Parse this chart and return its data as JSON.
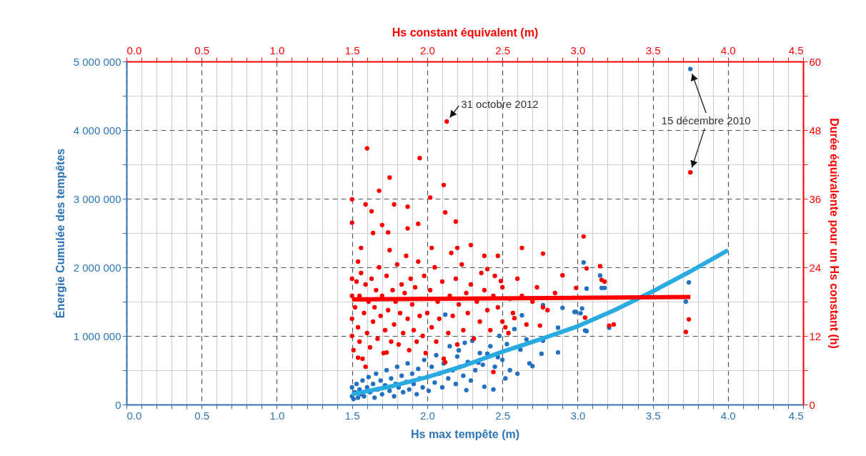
{
  "chart_data": {
    "type": "scatter",
    "xlabel": "Hs max tempête (m)",
    "x2label": "Hs constant équivalent (m)",
    "ylabel": "Énergie Cumulée des tempêtes",
    "y2label": "Durée équivalente pour un Hs constant (h)",
    "xlim": [
      0,
      4.5
    ],
    "x2lim": [
      0,
      4.5
    ],
    "ylim": [
      0,
      5000000
    ],
    "y2lim": [
      0,
      60
    ],
    "xticks": [
      {
        "value": 0,
        "label": "0.0"
      },
      {
        "value": 0.1,
        "label": null
      },
      {
        "value": 0.2,
        "label": null
      },
      {
        "value": 0.3,
        "label": null
      },
      {
        "value": 0.4,
        "label": null
      },
      {
        "value": 0.5,
        "label": "0.5"
      },
      {
        "value": 0.6,
        "label": null
      },
      {
        "value": 0.7,
        "label": null
      },
      {
        "value": 0.8,
        "label": null
      },
      {
        "value": 0.9,
        "label": null
      },
      {
        "value": 1,
        "label": "1.0"
      },
      {
        "value": 1.1,
        "label": null
      },
      {
        "value": 1.2,
        "label": null
      },
      {
        "value": 1.3,
        "label": null
      },
      {
        "value": 1.4,
        "label": null
      },
      {
        "value": 1.5,
        "label": "1.5"
      },
      {
        "value": 1.6,
        "label": null
      },
      {
        "value": 1.7,
        "label": null
      },
      {
        "value": 1.8,
        "label": null
      },
      {
        "value": 1.9,
        "label": null
      },
      {
        "value": 2,
        "label": "2.0"
      },
      {
        "value": 2.1,
        "label": null
      },
      {
        "value": 2.2,
        "label": null
      },
      {
        "value": 2.3,
        "label": null
      },
      {
        "value": 2.4,
        "label": null
      },
      {
        "value": 2.5,
        "label": "2.5"
      },
      {
        "value": 2.6,
        "label": null
      },
      {
        "value": 2.7,
        "label": null
      },
      {
        "value": 2.8,
        "label": null
      },
      {
        "value": 2.9,
        "label": null
      },
      {
        "value": 3,
        "label": "3.0"
      },
      {
        "value": 3.1,
        "label": null
      },
      {
        "value": 3.2,
        "label": null
      },
      {
        "value": 3.3,
        "label": null
      },
      {
        "value": 3.4,
        "label": null
      },
      {
        "value": 3.5,
        "label": "3.5"
      },
      {
        "value": 3.6,
        "label": null
      },
      {
        "value": 3.7,
        "label": null
      },
      {
        "value": 3.8,
        "label": null
      },
      {
        "value": 3.9,
        "label": null
      },
      {
        "value": 4,
        "label": "4.0"
      },
      {
        "value": 4.1,
        "label": null
      },
      {
        "value": 4.2,
        "label": null
      },
      {
        "value": 4.3,
        "label": null
      },
      {
        "value": 4.4,
        "label": null
      },
      {
        "value": 4.5,
        "label": "4.5"
      }
    ],
    "x2ticks": [
      {
        "value": 0,
        "label": "0.0"
      },
      {
        "value": 0.1,
        "label": null
      },
      {
        "value": 0.2,
        "label": null
      },
      {
        "value": 0.3,
        "label": null
      },
      {
        "value": 0.4,
        "label": null
      },
      {
        "value": 0.5,
        "label": "0.5"
      },
      {
        "value": 0.6,
        "label": null
      },
      {
        "value": 0.7,
        "label": null
      },
      {
        "value": 0.8,
        "label": null
      },
      {
        "value": 0.9,
        "label": null
      },
      {
        "value": 1,
        "label": "1.0"
      },
      {
        "value": 1.1,
        "label": null
      },
      {
        "value": 1.2,
        "label": null
      },
      {
        "value": 1.3,
        "label": null
      },
      {
        "value": 1.4,
        "label": null
      },
      {
        "value": 1.5,
        "label": "1.5"
      },
      {
        "value": 1.6,
        "label": null
      },
      {
        "value": 1.7,
        "label": null
      },
      {
        "value": 1.8,
        "label": null
      },
      {
        "value": 1.9,
        "label": null
      },
      {
        "value": 2,
        "label": "2.0"
      },
      {
        "value": 2.1,
        "label": null
      },
      {
        "value": 2.2,
        "label": null
      },
      {
        "value": 2.3,
        "label": null
      },
      {
        "value": 2.4,
        "label": null
      },
      {
        "value": 2.5,
        "label": "2.5"
      },
      {
        "value": 2.6,
        "label": null
      },
      {
        "value": 2.7,
        "label": null
      },
      {
        "value": 2.8,
        "label": null
      },
      {
        "value": 2.9,
        "label": null
      },
      {
        "value": 3,
        "label": "3.0"
      },
      {
        "value": 3.1,
        "label": null
      },
      {
        "value": 3.2,
        "label": null
      },
      {
        "value": 3.3,
        "label": null
      },
      {
        "value": 3.4,
        "label": null
      },
      {
        "value": 3.5,
        "label": "3.5"
      },
      {
        "value": 3.6,
        "label": null
      },
      {
        "value": 3.7,
        "label": null
      },
      {
        "value": 3.8,
        "label": null
      },
      {
        "value": 3.9,
        "label": null
      },
      {
        "value": 4,
        "label": "4.0"
      },
      {
        "value": 4.1,
        "label": null
      },
      {
        "value": 4.2,
        "label": null
      },
      {
        "value": 4.3,
        "label": null
      },
      {
        "value": 4.4,
        "label": null
      },
      {
        "value": 4.5,
        "label": "4.5"
      }
    ],
    "yticks": [
      0,
      {
        "value": 500000,
        "label": null
      },
      {
        "value": 1000000,
        "label": "1 000 000"
      },
      {
        "value": 1500000,
        "label": null
      },
      {
        "value": 2000000,
        "label": "2 000 000"
      },
      {
        "value": 2500000,
        "label": null
      },
      {
        "value": 3000000,
        "label": "3 000 000"
      },
      {
        "value": 3500000,
        "label": null
      },
      {
        "value": 4000000,
        "label": "4 000 000"
      },
      {
        "value": 4500000,
        "label": null
      },
      {
        "value": 5000000,
        "label": "5 000 000"
      }
    ],
    "y2ticks": [
      0,
      {
        "value": 6,
        "label": null
      },
      12,
      {
        "value": 18,
        "label": null
      },
      24,
      {
        "value": 30,
        "label": null
      },
      36,
      {
        "value": 42,
        "label": null
      },
      48,
      {
        "value": 54,
        "label": null
      },
      60
    ],
    "grid": true,
    "series": [
      {
        "color": "#2270c0",
        "x": [
          1.5,
          1.5,
          1.51,
          1.52,
          1.53,
          1.54,
          1.55,
          1.56,
          1.57,
          1.58,
          1.6,
          1.61,
          1.62,
          1.64,
          1.65,
          1.66,
          1.67,
          1.69,
          1.7,
          1.72,
          1.73,
          1.75,
          1.76,
          1.78,
          1.79,
          1.8,
          1.81,
          1.83,
          1.84,
          1.86,
          1.87,
          1.88,
          1.9,
          1.91,
          1.93,
          1.94,
          1.95,
          1.97,
          1.98,
          2.0,
          2.01,
          2.03,
          2.05,
          2.06,
          2.08,
          2.1,
          2.11,
          2.12,
          2.14,
          2.15,
          2.17,
          2.19,
          2.2,
          2.21,
          2.22,
          2.24,
          2.25,
          2.26,
          2.27,
          2.29,
          2.3,
          2.32,
          2.34,
          2.35,
          2.37,
          2.38,
          2.4,
          2.42,
          2.44,
          2.45,
          2.47,
          2.48,
          2.5,
          2.52,
          2.53,
          2.55,
          2.58,
          2.6,
          2.62,
          2.63,
          2.66,
          2.68,
          2.7,
          2.76,
          2.77,
          2.77,
          2.87,
          2.87,
          2.9,
          2.98,
          2.99,
          3.02,
          3.03,
          3.04,
          3.05,
          3.06,
          3.06,
          3.15,
          3.16,
          3.18,
          3.21,
          3.72,
          3.74,
          3.75
        ],
        "values": [
          120000,
          250000,
          80000,
          180000,
          300000,
          100000,
          220000,
          150000,
          350000,
          120000,
          250000,
          400000,
          180000,
          300000,
          100000,
          450000,
          220000,
          350000,
          150000,
          280000,
          500000,
          200000,
          380000,
          120000,
          300000,
          550000,
          250000,
          420000,
          180000,
          330000,
          600000,
          220000,
          450000,
          300000,
          150000,
          520000,
          380000,
          250000,
          650000,
          400000,
          200000,
          550000,
          320000,
          720000,
          450000,
          250000,
          600000,
          1310000,
          380000,
          850000,
          500000,
          300000,
          700000,
          790000,
          550000,
          420000,
          900000,
          210000,
          620000,
          350000,
          930000,
          500000,
          610000,
          750000,
          580000,
          260000,
          740000,
          850000,
          220000,
          550000,
          690000,
          1000000,
          650000,
          380000,
          880000,
          500000,
          1100000,
          450000,
          800000,
          1300000,
          950000,
          600000,
          560000,
          740000,
          1450000,
          930000,
          760000,
          1120000,
          1410000,
          1350000,
          1350000,
          1330000,
          1400000,
          2070000,
          1080000,
          1690000,
          1070000,
          1880000,
          1700000,
          1700000,
          1120000,
          1500000,
          1780000,
          4890000
        ]
      },
      {
        "type": "line",
        "color": "#29abe2",
        "x": [
          1.5,
          1.75,
          2.0,
          2.25,
          2.5,
          2.75,
          3.0,
          3.25,
          3.5,
          3.75,
          4.0
        ],
        "values": [
          150000,
          260000,
          400000,
          570000,
          770000,
          950000,
          1140000,
          1380000,
          1650000,
          1940000,
          2250000
        ]
      },
      {
        "color": "#ff0000",
        "axis": "y2",
        "x": [
          1.5,
          1.5,
          1.5,
          1.5,
          1.51,
          1.52,
          1.53,
          1.54,
          1.55,
          1.55,
          1.56,
          1.57,
          1.58,
          1.59,
          1.6,
          1.61,
          1.62,
          1.63,
          1.64,
          1.65,
          1.66,
          1.67,
          1.68,
          1.69,
          1.7,
          1.71,
          1.72,
          1.73,
          1.74,
          1.75,
          1.76,
          1.77,
          1.78,
          1.79,
          1.8,
          1.81,
          1.82,
          1.83,
          1.84,
          1.85,
          1.86,
          1.87,
          1.88,
          1.89,
          1.9,
          1.91,
          1.92,
          1.93,
          1.94,
          1.95,
          1.96,
          1.97,
          1.98,
          1.99,
          2.0,
          2.02,
          2.03,
          2.05,
          2.06,
          2.07,
          2.08,
          2.1,
          2.11,
          2.14,
          2.15,
          2.16,
          2.17,
          2.19,
          2.2,
          2.21,
          2.23,
          2.24,
          2.26,
          2.27,
          2.29,
          2.31,
          2.33,
          2.35,
          2.36,
          2.38,
          2.4,
          2.42,
          2.44,
          2.45,
          2.47,
          2.5,
          2.52,
          2.55,
          2.57,
          2.6,
          2.63,
          2.66,
          2.7,
          2.73,
          2.8,
          2.85,
          2.13,
          1.6,
          1.95,
          1.75,
          1.68,
          2.11,
          2.02,
          1.5,
          1.59,
          1.63,
          1.78,
          1.87,
          2.12,
          2.19,
          1.5,
          1.94,
          1.7,
          1.87,
          1.64,
          1.74,
          2.29,
          2.63,
          2.77,
          3.04,
          2.47,
          2.38,
          1.56,
          2.2,
          2.03,
          1.54,
          2.4,
          2.9,
          3.15,
          2.99,
          3.06,
          3.16,
          3.18,
          2.49,
          2.77,
          2.75,
          2.58,
          2.5,
          2.54,
          2.44,
          2.12,
          1.59,
          1.54,
          1.73,
          3.05,
          3.21,
          3.24,
          3.74,
          3.72,
          3.75
        ],
        "values": [
          22,
          19,
          15,
          12,
          9.5,
          17,
          21.5,
          13.5,
          11,
          19,
          23,
          8,
          16,
          21,
          12.5,
          18,
          10,
          22,
          14.5,
          17,
          20,
          11.5,
          24,
          15.5,
          19,
          9,
          13,
          22.5,
          16.5,
          27,
          11,
          20,
          14,
          18,
          24.5,
          10.5,
          16,
          21,
          12.5,
          19.5,
          26,
          15,
          9.5,
          22,
          17.5,
          13,
          20.5,
          11,
          25,
          15.5,
          18.5,
          12,
          22.5,
          9,
          16,
          20,
          13.5,
          24,
          11,
          18,
          15,
          21.5,
          8,
          12.5,
          19,
          26.5,
          15.5,
          22,
          10.5,
          17.5,
          24.5,
          13,
          19.5,
          16,
          21,
          11.5,
          18,
          14.5,
          23,
          20,
          16.5,
          13,
          19,
          22.5,
          17,
          20.5,
          13.5,
          18.5,
          16,
          22,
          19,
          14,
          18,
          20.5,
          16.5,
          19.5,
          49.5,
          44.8,
          43.1,
          39.7,
          37.4,
          38.4,
          36.2,
          35.9,
          35,
          33.8,
          35,
          34.6,
          33.6,
          32,
          31.8,
          31.6,
          31.4,
          30.8,
          30,
          30.1,
          27.9,
          27.4,
          26.4,
          29.4,
          26,
          26,
          27.4,
          27.4,
          27.4,
          25,
          23.7,
          22.6,
          24.2,
          20.4,
          23.8,
          21.8,
          21.5,
          21.6,
          17,
          13.8,
          15.1,
          14.5,
          12.5,
          5.7,
          7.4,
          6.6,
          8.2,
          9.1,
          15.2,
          13.8,
          14,
          14.9,
          12.7,
          40.6
        ]
      },
      {
        "type": "line",
        "color": "#ff0000",
        "axis": "y2",
        "x": [
          1.5,
          3.75
        ],
        "values": [
          18.4,
          18.8
        ]
      }
    ],
    "annotations": [
      {
        "text": "31 octobre 2012",
        "x": 2.13,
        "y": 4125000
      },
      {
        "text": "15 décembre 2010",
        "x": 3.75,
        "y": 4890000
      }
    ]
  }
}
